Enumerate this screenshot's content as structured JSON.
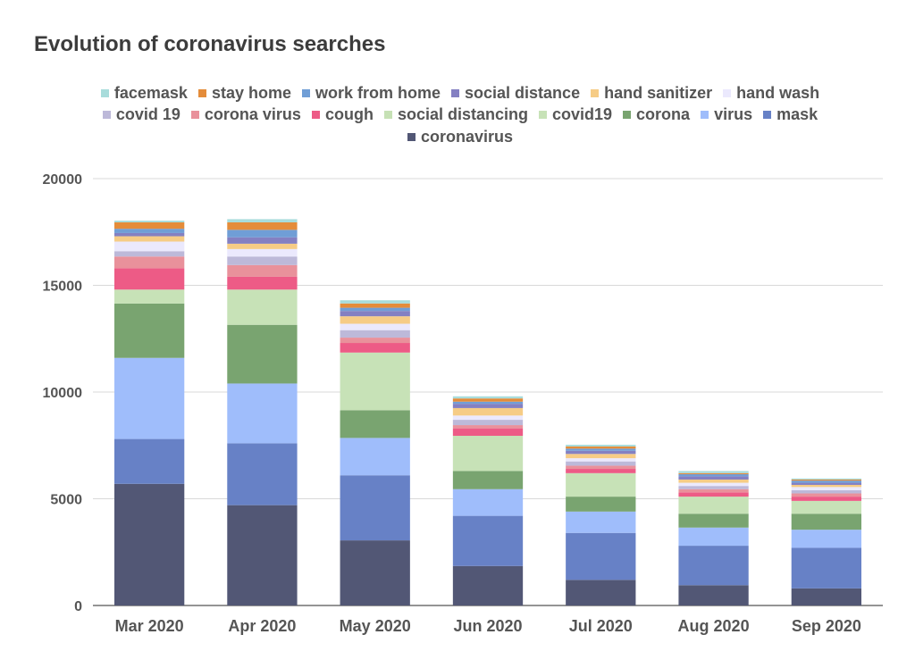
{
  "chart_data": {
    "type": "bar",
    "stacked": true,
    "title": "Evolution of coronavirus searches",
    "xlabel": "",
    "ylabel": "",
    "ylim": [
      0,
      20000
    ],
    "yticks": [
      "0",
      "5000",
      "10000",
      "15000",
      "20000"
    ],
    "grid": true,
    "legend_position": "top",
    "categories": [
      "Mar 2020",
      "Apr 2020",
      "May 2020",
      "Jun 2020",
      "Jul 2020",
      "Aug 2020",
      "Sep 2020"
    ],
    "series": [
      {
        "name": "coronavirus",
        "color": "#525775",
        "values": [
          5700,
          4700,
          3050,
          1850,
          1200,
          950,
          800
        ]
      },
      {
        "name": "mask",
        "color": "#6781c6",
        "values": [
          2100,
          2900,
          3050,
          2350,
          2200,
          1850,
          1900
        ]
      },
      {
        "name": "virus",
        "color": "#9fbdfb",
        "values": [
          3800,
          2800,
          1750,
          1250,
          1000,
          850,
          850
        ]
      },
      {
        "name": "corona",
        "color": "#79a470",
        "values": [
          2550,
          2750,
          1300,
          850,
          700,
          650,
          750
        ]
      },
      {
        "name": "covid19",
        "color": "#c7e2b7",
        "values": [
          650,
          1650,
          2700,
          1650,
          1100,
          800,
          600
        ]
      },
      {
        "name": "social distancing",
        "color": "#c6e1b5",
        "values": [
          0,
          0,
          0,
          0,
          0,
          0,
          0
        ]
      },
      {
        "name": "cough",
        "color": "#ed5b86",
        "values": [
          1000,
          600,
          450,
          350,
          200,
          200,
          200
        ]
      },
      {
        "name": "corona virus",
        "color": "#e9919b",
        "values": [
          550,
          550,
          250,
          150,
          150,
          150,
          150
        ]
      },
      {
        "name": "covid 19",
        "color": "#bdb9d9",
        "values": [
          250,
          400,
          350,
          250,
          200,
          150,
          150
        ]
      },
      {
        "name": "hand wash",
        "color": "#ebe9fd",
        "values": [
          450,
          350,
          300,
          200,
          150,
          150,
          150
        ]
      },
      {
        "name": "hand sanitizer",
        "color": "#f6cc86",
        "values": [
          250,
          250,
          350,
          350,
          200,
          150,
          100
        ]
      },
      {
        "name": "social distance",
        "color": "#8480c2",
        "values": [
          150,
          300,
          250,
          200,
          150,
          150,
          100
        ]
      },
      {
        "name": "work from home",
        "color": "#709ed6",
        "values": [
          200,
          350,
          150,
          100,
          100,
          100,
          100
        ]
      },
      {
        "name": "stay home",
        "color": "#e48c3a",
        "values": [
          300,
          350,
          200,
          150,
          100,
          50,
          50
        ]
      },
      {
        "name": "facemask",
        "color": "#a8dcdb",
        "values": [
          80,
          150,
          150,
          100,
          80,
          100,
          50
        ]
      }
    ]
  },
  "legend_rows": [
    [
      "facemask",
      "stay home",
      "work from home",
      "social distance",
      "hand sanitizer",
      "hand wash"
    ],
    [
      "covid 19",
      "corona virus",
      "cough",
      "social distancing",
      "covid19",
      "corona",
      "virus",
      "mask"
    ],
    [
      "coronavirus"
    ]
  ]
}
